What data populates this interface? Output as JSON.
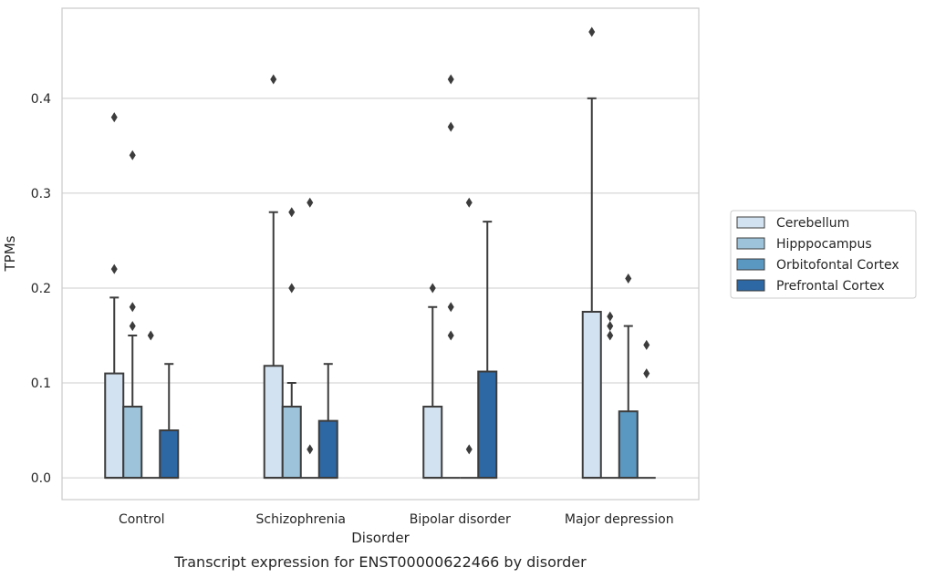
{
  "chart_data": {
    "type": "box",
    "title": "",
    "caption": "Transcript expression for ENST00000622466 by disorder",
    "xlabel": "Disorder",
    "ylabel": "TPMs",
    "ylim": [
      -0.023,
      0.495
    ],
    "yticks": [
      0.0,
      0.1,
      0.2,
      0.3,
      0.4
    ],
    "ytick_labels": [
      "0.0",
      "0.1",
      "0.2",
      "0.3",
      "0.4"
    ],
    "grid": "horizontal",
    "legend_position": "right",
    "categories": [
      "Control",
      "Schizophrenia",
      "Bipolar disorder",
      "Major depression"
    ],
    "series": [
      {
        "name": "Cerebellum",
        "color": "#d3e2f0",
        "boxes": [
          {
            "q1": 0,
            "median": 0,
            "q3": 0.11,
            "whisker_low": 0,
            "whisker_high": 0.19,
            "outliers": [
              0.22,
              0.38
            ]
          },
          {
            "q1": 0,
            "median": 0,
            "q3": 0.118,
            "whisker_low": 0,
            "whisker_high": 0.28,
            "outliers": [
              0.42
            ]
          },
          {
            "q1": 0,
            "median": 0,
            "q3": 0.075,
            "whisker_low": 0,
            "whisker_high": 0.18,
            "outliers": [
              0.2
            ]
          },
          {
            "q1": 0,
            "median": 0,
            "q3": 0.175,
            "whisker_low": 0,
            "whisker_high": 0.4,
            "outliers": [
              0.47
            ]
          }
        ]
      },
      {
        "name": "Hipppocampus",
        "color": "#9dc3da",
        "boxes": [
          {
            "q1": 0,
            "median": 0,
            "q3": 0.075,
            "whisker_low": 0,
            "whisker_high": 0.15,
            "outliers": [
              0.16,
              0.18,
              0.34
            ]
          },
          {
            "q1": 0,
            "median": 0,
            "q3": 0.075,
            "whisker_low": 0,
            "whisker_high": 0.1,
            "outliers": [
              0.2,
              0.28
            ]
          },
          {
            "q1": 0,
            "median": 0,
            "q3": 0,
            "whisker_low": 0,
            "whisker_high": 0,
            "outliers": [
              0.15,
              0.18,
              0.37,
              0.42
            ]
          },
          {
            "q1": 0,
            "median": 0,
            "q3": 0,
            "whisker_low": 0,
            "whisker_high": 0,
            "outliers": [
              0.15,
              0.16,
              0.17
            ]
          }
        ]
      },
      {
        "name": "Orbitofontal Cortex",
        "color": "#5a97c1",
        "boxes": [
          {
            "q1": 0,
            "median": 0,
            "q3": 0,
            "whisker_low": 0,
            "whisker_high": 0,
            "outliers": [
              0.15
            ]
          },
          {
            "q1": 0,
            "median": 0,
            "q3": 0,
            "whisker_low": 0,
            "whisker_high": 0,
            "outliers": [
              0.03,
              0.29
            ]
          },
          {
            "q1": 0,
            "median": 0,
            "q3": 0,
            "whisker_low": 0,
            "whisker_high": 0,
            "outliers": [
              0.03,
              0.29
            ]
          },
          {
            "q1": 0,
            "median": 0,
            "q3": 0.07,
            "whisker_low": 0,
            "whisker_high": 0.16,
            "outliers": [
              0.21
            ]
          }
        ]
      },
      {
        "name": "Prefrontal Cortex",
        "color": "#2d67a4",
        "boxes": [
          {
            "q1": 0,
            "median": 0,
            "q3": 0.05,
            "whisker_low": 0,
            "whisker_high": 0.12,
            "outliers": []
          },
          {
            "q1": 0,
            "median": 0,
            "q3": 0.06,
            "whisker_low": 0,
            "whisker_high": 0.12,
            "outliers": []
          },
          {
            "q1": 0,
            "median": 0,
            "q3": 0.112,
            "whisker_low": 0,
            "whisker_high": 0.27,
            "outliers": []
          },
          {
            "q1": 0,
            "median": 0,
            "q3": 0,
            "whisker_low": 0,
            "whisker_high": 0,
            "outliers": [
              0.11,
              0.14
            ]
          }
        ]
      }
    ]
  }
}
